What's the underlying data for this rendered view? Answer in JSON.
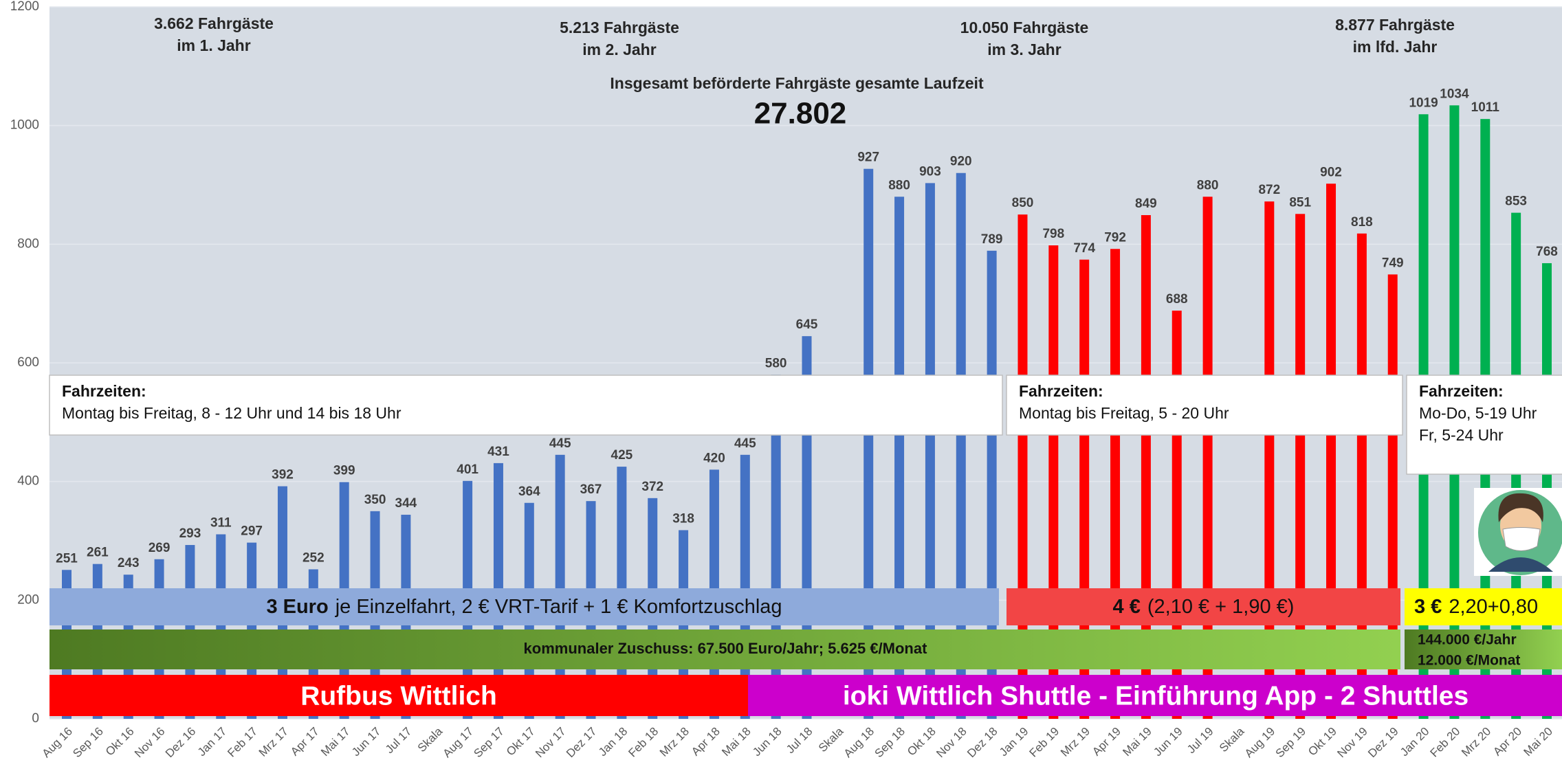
{
  "chart_data": {
    "type": "bar",
    "categories": [
      "Aug 16",
      "Sep 16",
      "Okt 16",
      "Nov 16",
      "Dez 16",
      "Jan 17",
      "Feb 17",
      "Mrz 17",
      "Apr 17",
      "Mai 17",
      "Jun 17",
      "Jul 17",
      "Skala",
      "Aug 17",
      "Sep 17",
      "Okt 17",
      "Nov 17",
      "Dez 17",
      "Jan 18",
      "Feb 18",
      "Mrz 18",
      "Apr 18",
      "Mai 18",
      "Jun 18",
      "Jul 18",
      "Skala",
      "Aug 18",
      "Sep 18",
      "Okt 18",
      "Nov 18",
      "Dez 18",
      "Jan 19",
      "Feb 19",
      "Mrz 19",
      "Apr 19",
      "Mai 19",
      "Jun 19",
      "Jul 19",
      "Skala",
      "Aug 19",
      "Sep 19",
      "Okt 19",
      "Nov 19",
      "Dez 19",
      "Jan 20",
      "Feb 20",
      "Mrz 20",
      "Apr 20",
      "Mai 20"
    ],
    "series": [
      {
        "color": "#4472c4",
        "values": [
          251,
          261,
          243,
          269,
          293,
          311,
          297,
          392,
          252,
          399,
          350,
          344,
          null,
          401,
          431,
          364,
          445,
          367,
          425,
          372,
          318,
          420,
          445,
          580,
          645,
          null,
          927,
          880,
          903,
          920,
          789,
          null,
          null,
          null,
          null,
          null,
          null,
          null,
          null,
          null,
          null,
          null,
          null,
          null,
          null,
          null,
          null,
          null,
          null
        ]
      },
      {
        "color": "#ff0000",
        "values": [
          null,
          null,
          null,
          null,
          null,
          null,
          null,
          null,
          null,
          null,
          null,
          null,
          null,
          null,
          null,
          null,
          null,
          null,
          null,
          null,
          null,
          null,
          null,
          null,
          null,
          null,
          null,
          null,
          null,
          null,
          null,
          850,
          798,
          774,
          792,
          849,
          688,
          880,
          null,
          872,
          851,
          902,
          818,
          749,
          null,
          null,
          null,
          null,
          null
        ]
      },
      {
        "color": "#00b050",
        "values": [
          null,
          null,
          null,
          null,
          null,
          null,
          null,
          null,
          null,
          null,
          null,
          null,
          null,
          null,
          null,
          null,
          null,
          null,
          null,
          null,
          null,
          null,
          null,
          null,
          null,
          null,
          null,
          null,
          null,
          null,
          null,
          null,
          null,
          null,
          null,
          null,
          null,
          null,
          null,
          null,
          null,
          null,
          null,
          null,
          1019,
          1034,
          1011,
          853,
          768
        ]
      }
    ],
    "ylim": [
      0,
      1200
    ],
    "yticks": [
      0,
      200,
      400,
      600,
      800,
      1000,
      1200
    ],
    "grid": true,
    "annotations": [
      {
        "lines": [
          "3.662 Fahrgäste",
          "im 1. Jahr"
        ]
      },
      {
        "lines": [
          "5.213 Fahrgäste",
          "im 2. Jahr"
        ]
      },
      {
        "lines": [
          "10.050 Fahrgäste",
          "im 3. Jahr"
        ]
      },
      {
        "lines": [
          "8.877 Fahrgäste",
          "im lfd. Jahr"
        ]
      }
    ],
    "total_label": "Insgesamt beförderte Fahrgäste gesamte Laufzeit",
    "total": "27.802",
    "schedules": [
      {
        "title": "Fahrzeiten:",
        "lines": [
          "Montag bis Freitag, 8 - 12 Uhr und 14 bis 18 Uhr"
        ]
      },
      {
        "title": "Fahrzeiten:",
        "lines": [
          "Montag bis Freitag, 5 - 20 Uhr"
        ]
      },
      {
        "title": "Fahrzeiten:",
        "lines": [
          "Mo-Do, 5-19 Uhr",
          "Fr, 5-24 Uhr"
        ]
      }
    ],
    "fares": [
      {
        "bold": "3 Euro",
        "text": "je Einzelfahrt,  2 € VRT-Tarif + 1 € Komfortzuschlag"
      },
      {
        "bold": "4 €",
        "text": "(2,10 € + 1,90 €)"
      },
      {
        "bold": "3 €",
        "text": "2,20+0,80"
      }
    ],
    "subsidies": [
      {
        "lines": [
          "kommunaler Zuschuss: 67.500 Euro/Jahr; 5.625 €/Monat"
        ]
      },
      {
        "lines": [
          "144.000 €/Jahr",
          "12.000 €/Monat"
        ]
      }
    ],
    "operators": [
      "Rufbus Wittlich",
      "ioki Wittlich Shuttle - Einführung App - 2 Shuttles"
    ]
  }
}
